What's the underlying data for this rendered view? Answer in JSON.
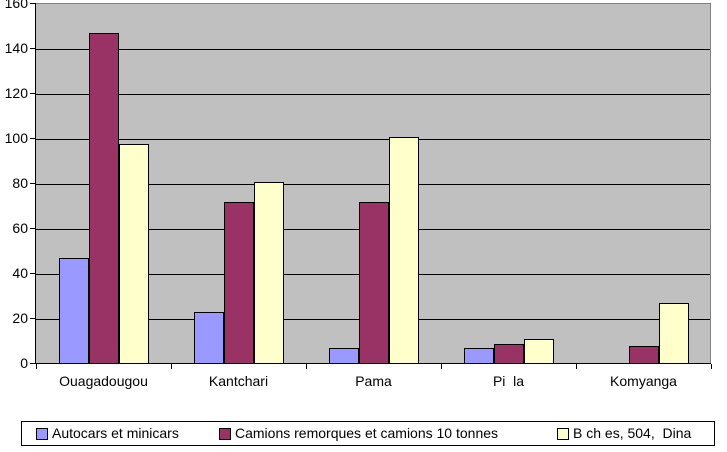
{
  "chart_data": {
    "type": "bar",
    "title": "",
    "xlabel": "",
    "ylabel": "",
    "categories": [
      "Ouagadougou",
      "Kantchari",
      "Pama",
      "Pi  la",
      "Komyanga"
    ],
    "series": [
      {
        "name": "Autocars et minicars",
        "color": "#9999FF",
        "values": [
          47,
          23,
          7,
          7,
          0
        ]
      },
      {
        "name": "Camions remorques et camions 10 tonnes",
        "color": "#993366",
        "values": [
          147,
          72,
          72,
          9,
          8
        ]
      },
      {
        "name": "B ch es, 504,  Dina",
        "color": "#FFFFCC",
        "values": [
          98,
          81,
          101,
          11,
          27
        ]
      }
    ],
    "ylim": [
      0,
      160
    ],
    "ytick_step": 20,
    "yticks": [
      0,
      20,
      40,
      60,
      80,
      100,
      120,
      140,
      160
    ],
    "grid": true,
    "legend_position": "bottom",
    "colors": {
      "plot_background": "#C0C0C0",
      "gridline": "#000000",
      "plot_border": "#808080",
      "axis": "#000000",
      "canvas_background": "#FFFFFF",
      "text": "#000000"
    }
  }
}
